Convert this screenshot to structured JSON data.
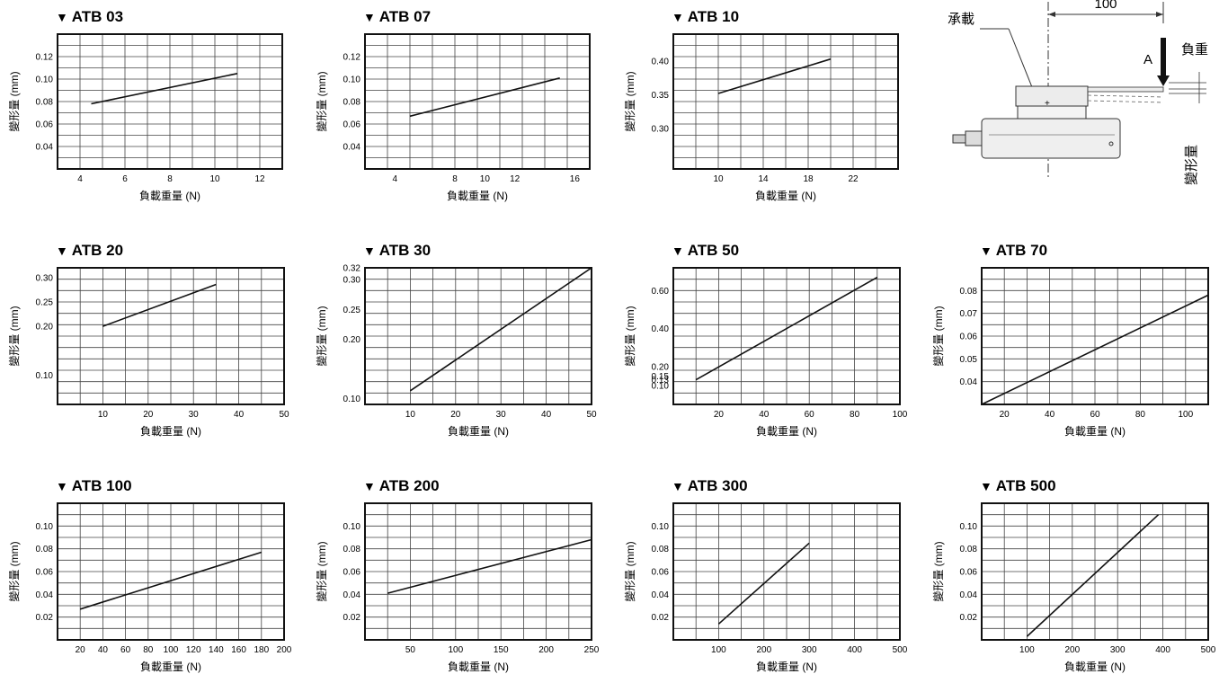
{
  "diagram": {
    "label_bearing": "承載",
    "label_load": "負重",
    "label_deflection": "變形量",
    "label_point": "A",
    "dimension": "100"
  },
  "chart_data": [
    {
      "type": "line",
      "marker": "▼",
      "title_prefix": "ATB",
      "title_num": "03",
      "xlabel": "負載重量 (N)",
      "ylabel": "變形量 (mm)",
      "xlim": [
        3,
        13
      ],
      "ylim": [
        0.02,
        0.14
      ],
      "xticks": [
        4,
        6,
        8,
        10,
        12
      ],
      "yticks": [
        0.04,
        0.06,
        0.08,
        0.1,
        0.12
      ],
      "yticklabels": [
        "0.04",
        "0.06",
        "0.08",
        "0.10",
        "0.12"
      ],
      "grid_cols": 10,
      "grid_rows": 12,
      "series": [
        {
          "x": [
            4.5,
            11
          ],
          "y": [
            0.078,
            0.105
          ]
        }
      ]
    },
    {
      "type": "line",
      "marker": "▼",
      "title_prefix": "ATB",
      "title_num": "07",
      "xlabel": "負載重量 (N)",
      "ylabel": "變形量 (mm)",
      "xlim": [
        2,
        17
      ],
      "ylim": [
        0.02,
        0.14
      ],
      "xticks": [
        4,
        8,
        10,
        12,
        16
      ],
      "yticks": [
        0.04,
        0.06,
        0.08,
        0.1,
        0.12
      ],
      "yticklabels": [
        "0.04",
        "0.06",
        "0.08",
        "0.10",
        "0.12"
      ],
      "grid_cols": 10,
      "grid_rows": 12,
      "series": [
        {
          "x": [
            5,
            15
          ],
          "y": [
            0.067,
            0.101
          ]
        }
      ]
    },
    {
      "type": "line",
      "marker": "▼",
      "title_prefix": "ATB",
      "title_num": "10",
      "xlabel": "負載重量 (N)",
      "ylabel": "變形量 (mm)",
      "xlim": [
        6,
        26
      ],
      "ylim": [
        0.24,
        0.44
      ],
      "xticks": [
        10,
        14,
        18,
        22
      ],
      "yticks": [
        0.3,
        0.35,
        0.4
      ],
      "yticklabels": [
        "0.30",
        "0.35",
        "0.40"
      ],
      "grid_cols": 10,
      "grid_rows": 12,
      "series": [
        {
          "x": [
            10,
            20
          ],
          "y": [
            0.352,
            0.403
          ]
        }
      ]
    },
    {
      "type": "line",
      "marker": "▼",
      "title_prefix": "ATB",
      "title_num": "20",
      "xlabel": "負載重量 (N)",
      "ylabel": "變形量 (mm)",
      "xlim": [
        0,
        50
      ],
      "ylim": [
        0.04,
        0.32
      ],
      "xticks": [
        10,
        20,
        30,
        40,
        50
      ],
      "yticks": [
        0.1,
        0.2,
        0.25,
        0.3
      ],
      "yticklabels": [
        "0.10",
        "0.20",
        "0.25",
        "0.30"
      ],
      "grid_cols": 10,
      "grid_rows": 12,
      "series": [
        {
          "x": [
            10,
            35
          ],
          "y": [
            0.2,
            0.286
          ]
        }
      ]
    },
    {
      "type": "line",
      "marker": "▼",
      "title_prefix": "ATB",
      "title_num": "30",
      "xlabel": "負載重量 (N)",
      "ylabel": "變形量 (mm)",
      "xlim": [
        0,
        50
      ],
      "ylim": [
        0.09,
        0.32
      ],
      "xticks": [
        10,
        20,
        30,
        40,
        50
      ],
      "yticks": [
        0.1,
        0.2,
        0.25,
        0.3,
        0.32
      ],
      "yticklabels": [
        "0.10",
        "0.20",
        "0.25",
        "0.30",
        "0.32"
      ],
      "grid_cols": 10,
      "grid_rows": 12,
      "series": [
        {
          "x": [
            10,
            50
          ],
          "y": [
            0.113,
            0.32
          ]
        }
      ]
    },
    {
      "type": "line",
      "marker": "▼",
      "title_prefix": "ATB",
      "title_num": "50",
      "xlabel": "負載重量 (N)",
      "ylabel": "變形量 (mm)",
      "xlim": [
        0,
        100
      ],
      "ylim": [
        0,
        0.72
      ],
      "xticks": [
        20,
        40,
        60,
        80,
        100
      ],
      "yticks": [
        0.1,
        0.13,
        0.15,
        0.2,
        0.4,
        0.6
      ],
      "yticklabels": [
        "0.10",
        "0.13",
        "0.15",
        "0.20",
        "0.40",
        "0.60"
      ],
      "grid_cols": 10,
      "grid_rows": 12,
      "series": [
        {
          "x": [
            10,
            90
          ],
          "y": [
            0.13,
            0.67
          ]
        }
      ]
    },
    {
      "type": "line",
      "marker": "▼",
      "title_prefix": "ATB",
      "title_num": "70",
      "xlabel": "負載重量 (N)",
      "ylabel": "變形量 (mm)",
      "xlim": [
        10,
        110
      ],
      "ylim": [
        0.03,
        0.09
      ],
      "xticks": [
        20,
        40,
        60,
        80,
        100
      ],
      "yticks": [
        0.04,
        0.05,
        0.06,
        0.07,
        0.08
      ],
      "yticklabels": [
        "0.04",
        "0.05",
        "0.06",
        "0.07",
        "0.08"
      ],
      "grid_cols": 10,
      "grid_rows": 12,
      "series": [
        {
          "x": [
            10,
            110
          ],
          "y": [
            0.03,
            0.078
          ]
        }
      ]
    },
    {
      "type": "line",
      "marker": "▼",
      "title_prefix": "ATB",
      "title_num": "100",
      "xlabel": "負載重量 (N)",
      "ylabel": "變形量 (mm)",
      "xlim": [
        0,
        200
      ],
      "ylim": [
        0,
        0.12
      ],
      "xticks": [
        20,
        40,
        60,
        80,
        100,
        120,
        140,
        160,
        180,
        200
      ],
      "yticks": [
        0.02,
        0.04,
        0.06,
        0.08,
        0.1
      ],
      "yticklabels": [
        "0.02",
        "0.04",
        "0.06",
        "0.08",
        "0.10"
      ],
      "grid_cols": 10,
      "grid_rows": 12,
      "series": [
        {
          "x": [
            20,
            180
          ],
          "y": [
            0.027,
            0.077
          ]
        }
      ]
    },
    {
      "type": "line",
      "marker": "▼",
      "title_prefix": "ATB",
      "title_num": "200",
      "xlabel": "負載重量 (N)",
      "ylabel": "變形量 (mm)",
      "xlim": [
        0,
        250
      ],
      "ylim": [
        0,
        0.12
      ],
      "xticks": [
        50,
        100,
        150,
        200,
        250
      ],
      "yticks": [
        0.02,
        0.04,
        0.06,
        0.08,
        0.1
      ],
      "yticklabels": [
        "0.02",
        "0.04",
        "0.06",
        "0.08",
        "0.10"
      ],
      "grid_cols": 10,
      "grid_rows": 12,
      "series": [
        {
          "x": [
            25,
            250
          ],
          "y": [
            0.041,
            0.088
          ]
        }
      ]
    },
    {
      "type": "line",
      "marker": "▼",
      "title_prefix": "ATB",
      "title_num": "300",
      "xlabel": "負載重量 (N)",
      "ylabel": "變形量 (mm)",
      "xlim": [
        0,
        500
      ],
      "ylim": [
        0,
        0.12
      ],
      "xticks": [
        100,
        200,
        300,
        400,
        500
      ],
      "yticks": [
        0.02,
        0.04,
        0.06,
        0.08,
        0.1
      ],
      "yticklabels": [
        "0.02",
        "0.04",
        "0.06",
        "0.08",
        "0.10"
      ],
      "grid_cols": 10,
      "grid_rows": 12,
      "series": [
        {
          "x": [
            100,
            300
          ],
          "y": [
            0.014,
            0.085
          ]
        }
      ]
    },
    {
      "type": "line",
      "marker": "▼",
      "title_prefix": "ATB",
      "title_num": "500",
      "xlabel": "負載重量 (N)",
      "ylabel": "變形量 (mm)",
      "xlim": [
        0,
        500
      ],
      "ylim": [
        0,
        0.12
      ],
      "xticks": [
        100,
        200,
        300,
        400,
        500
      ],
      "yticks": [
        0.02,
        0.04,
        0.06,
        0.08,
        0.1
      ],
      "yticklabels": [
        "0.02",
        "0.04",
        "0.06",
        "0.08",
        "0.10"
      ],
      "grid_cols": 10,
      "grid_rows": 12,
      "series": [
        {
          "x": [
            100,
            390
          ],
          "y": [
            0.003,
            0.11
          ]
        }
      ]
    }
  ]
}
